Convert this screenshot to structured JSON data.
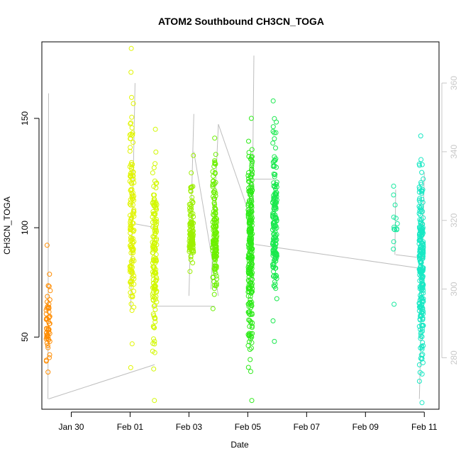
{
  "chart_data": {
    "type": "scatter",
    "title": "ATOM2 Southbound CH3CN_TOGA",
    "xlabel": "Date",
    "ylabel": "CH3CN_TOGA",
    "xlim": [
      "2017-01-29T00:00",
      "2017-02-11T12:00"
    ],
    "ylim": [
      17,
      185
    ],
    "y2lim": [
      265,
      372
    ],
    "x_ticks": [
      {
        "label": "Jan 30",
        "value": "2017-01-30T00:00"
      },
      {
        "label": "Feb 01",
        "value": "2017-02-01T00:00"
      },
      {
        "label": "Feb 03",
        "value": "2017-02-03T00:00"
      },
      {
        "label": "Feb 05",
        "value": "2017-02-05T00:00"
      },
      {
        "label": "Feb 07",
        "value": "2017-02-07T00:00"
      },
      {
        "label": "Feb 09",
        "value": "2017-02-09T00:00"
      },
      {
        "label": "Feb 11",
        "value": "2017-02-11T00:00"
      }
    ],
    "y_ticks": [
      50,
      100,
      150
    ],
    "y2_ticks": [
      280,
      300,
      320,
      340,
      360
    ],
    "legend": "none",
    "grid": false,
    "line_color": "#bebebe",
    "clusters": [
      {
        "t": "2017-01-29T05:10",
        "n": 55,
        "ymin": 34,
        "ymax": 92,
        "center": 55,
        "color": "#ff8c00"
      },
      {
        "t": "2017-02-01T01:30",
        "n": 140,
        "ymin": 36,
        "ymax": 182,
        "center": 100,
        "color": "#e1f500"
      },
      {
        "t": "2017-02-01T20:00",
        "n": 150,
        "ymin": 21,
        "ymax": 145,
        "center": 88,
        "color": "#d2f800"
      },
      {
        "t": "2017-02-03T02:00",
        "n": 110,
        "ymin": 80,
        "ymax": 133,
        "center": 96,
        "color": "#9cf000"
      },
      {
        "t": "2017-02-03T21:00",
        "n": 160,
        "ymin": 63,
        "ymax": 141,
        "center": 95,
        "color": "#6cf000"
      },
      {
        "t": "2017-02-05T02:00",
        "n": 260,
        "ymin": 21,
        "ymax": 150,
        "center": 90,
        "color": "#2dea18"
      },
      {
        "t": "2017-02-05T22:00",
        "n": 170,
        "ymin": 48,
        "ymax": 158,
        "center": 100,
        "color": "#1ae84e"
      },
      {
        "t": "2017-02-10T00:30",
        "n": 14,
        "ymin": 65,
        "ymax": 119,
        "center": 98,
        "color": "#1ae8a0"
      },
      {
        "t": "2017-02-10T21:30",
        "n": 240,
        "ymin": 20,
        "ymax": 142,
        "center": 85,
        "color": "#18e8c4"
      }
    ],
    "y2_series_segments": [
      {
        "t": [
          "2017-01-29T05:00",
          "2017-01-29T05:30"
        ],
        "y2": [
          268,
          357
        ]
      },
      {
        "t": [
          "2017-01-29T05:30",
          "2017-02-01T20:00"
        ],
        "y2": [
          268,
          278
        ]
      },
      {
        "t": [
          "2017-02-01T00:30",
          "2017-02-01T04:00"
        ],
        "y2": [
          294,
          360
        ]
      },
      {
        "t": [
          "2017-02-01T04:00",
          "2017-02-01T19:00"
        ],
        "y2": [
          319,
          318
        ]
      },
      {
        "t": [
          "2017-02-01T19:00",
          "2017-02-03T21:00"
        ],
        "y2": [
          295,
          295
        ]
      },
      {
        "t": [
          "2017-02-03T00:00",
          "2017-02-03T04:00"
        ],
        "y2": [
          298,
          351
        ]
      },
      {
        "t": [
          "2017-02-03T04:00",
          "2017-02-04T00:00"
        ],
        "y2": [
          340,
          298
        ]
      },
      {
        "t": [
          "2017-02-03T18:00",
          "2017-02-04T00:00"
        ],
        "y2": [
          300,
          348
        ]
      },
      {
        "t": [
          "2017-02-04T00:00",
          "2017-02-05T03:00"
        ],
        "y2": [
          348,
          320
        ]
      },
      {
        "t": [
          "2017-02-05T03:00",
          "2017-02-05T05:00"
        ],
        "y2": [
          300,
          368
        ]
      },
      {
        "t": [
          "2017-02-05T05:00",
          "2017-02-05T22:00"
        ],
        "y2": [
          332,
          332
        ]
      },
      {
        "t": [
          "2017-02-05T06:00",
          "2017-02-10T21:30"
        ],
        "y2": [
          313,
          306
        ]
      },
      {
        "t": [
          "2017-02-10T00:00",
          "2017-02-10T00:40"
        ],
        "y2": [
          310,
          329
        ]
      },
      {
        "t": [
          "2017-02-10T00:40",
          "2017-02-11T00:00"
        ],
        "y2": [
          310,
          309
        ]
      },
      {
        "t": [
          "2017-02-10T20:00",
          "2017-02-11T00:00"
        ],
        "y2": [
          268,
          334
        ]
      }
    ]
  }
}
